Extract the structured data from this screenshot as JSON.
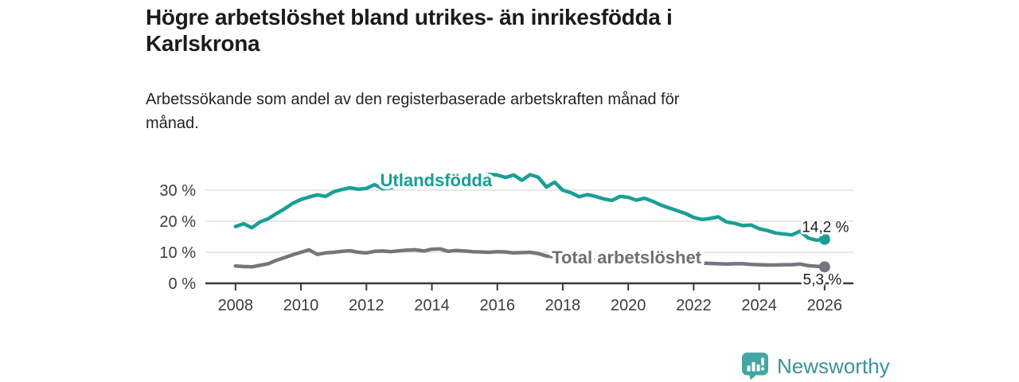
{
  "header": {
    "title_lines": [
      "Högre arbetslöshet bland utrikes- än inrikesfödda i",
      "Karlskrona"
    ],
    "subtitle_lines": [
      "Arbetssökande som andel av den registerbaserade arbetskraften månad för",
      "månad."
    ]
  },
  "footer": {
    "brand": "Newsworthy",
    "logo_icon": "chart-speech-bubble-icon",
    "brand_color": "#3b919b",
    "icon_color": "#43a6a2",
    "icon_glyph_color": "#ffffff"
  },
  "chart_data": {
    "type": "line",
    "title": "Högre arbetslöshet bland utrikes- än inrikesfödda i Karlskrona",
    "subtitle": "Arbetssökande som andel av den registerbaserade arbetskraften månad för månad.",
    "xlabel": "",
    "ylabel": "",
    "unit": "%",
    "grid": "horizontal",
    "xlim": [
      2007.08,
      2026.88
    ],
    "ylim": [
      0,
      40
    ],
    "x_ticks": {
      "values": [
        2008,
        2010,
        2012,
        2014,
        2016,
        2018,
        2020,
        2022,
        2024,
        2026
      ],
      "labels": [
        "2008",
        "2010",
        "2012",
        "2014",
        "2016",
        "2018",
        "2020",
        "2022",
        "2024",
        "2026"
      ]
    },
    "y_ticks": {
      "values": [
        0,
        10,
        20,
        30
      ],
      "labels": [
        "0 %",
        "10 %",
        "20 %",
        "30 %"
      ]
    },
    "colors": {
      "grid": "#d9d9d9",
      "axis": "#3a3a3a",
      "tick_text": "#3d3d3d",
      "value_text": "#1f1f1f"
    },
    "series": [
      {
        "name": "Utlandsfödda",
        "color": "#1a9e96",
        "line_width": 4.5,
        "end_dot": true,
        "end_label": {
          "text": "14,2 %",
          "dx": 1,
          "dy": -9
        },
        "label": {
          "text": "Utlandsfödda",
          "x_year": 2014.13,
          "y_pct": 33.3
        },
        "points": [
          [
            2008.0,
            18.3
          ],
          [
            2008.25,
            19.2
          ],
          [
            2008.5,
            17.9
          ],
          [
            2008.75,
            19.8
          ],
          [
            2009.0,
            20.8
          ],
          [
            2009.25,
            22.5
          ],
          [
            2009.5,
            24.0
          ],
          [
            2009.75,
            25.8
          ],
          [
            2010.0,
            27.0
          ],
          [
            2010.25,
            27.8
          ],
          [
            2010.5,
            28.5
          ],
          [
            2010.75,
            28.0
          ],
          [
            2011.0,
            29.5
          ],
          [
            2011.25,
            30.2
          ],
          [
            2011.5,
            30.8
          ],
          [
            2011.75,
            30.3
          ],
          [
            2012.0,
            30.6
          ],
          [
            2012.25,
            31.8
          ],
          [
            2012.5,
            30.5
          ],
          [
            2012.75,
            30.8
          ],
          [
            2013.0,
            31.3
          ],
          [
            2013.25,
            31.9
          ],
          [
            2013.5,
            32.4
          ],
          [
            2013.75,
            32.1
          ],
          [
            2014.0,
            32.7
          ],
          [
            2014.25,
            33.1
          ],
          [
            2014.5,
            32.3
          ],
          [
            2014.75,
            33.3
          ],
          [
            2015.0,
            33.7
          ],
          [
            2015.25,
            34.3
          ],
          [
            2015.5,
            34.1
          ],
          [
            2015.75,
            35.1
          ],
          [
            2016.0,
            34.9
          ],
          [
            2016.25,
            34.1
          ],
          [
            2016.5,
            34.9
          ],
          [
            2016.75,
            33.2
          ],
          [
            2017.0,
            35.0
          ],
          [
            2017.25,
            34.2
          ],
          [
            2017.5,
            31.0
          ],
          [
            2017.75,
            32.6
          ],
          [
            2018.0,
            30.0
          ],
          [
            2018.25,
            29.2
          ],
          [
            2018.5,
            27.9
          ],
          [
            2018.75,
            28.6
          ],
          [
            2019.0,
            28.0
          ],
          [
            2019.25,
            27.2
          ],
          [
            2019.5,
            26.7
          ],
          [
            2019.75,
            28.0
          ],
          [
            2020.0,
            27.7
          ],
          [
            2020.25,
            26.8
          ],
          [
            2020.5,
            27.4
          ],
          [
            2020.75,
            26.4
          ],
          [
            2021.0,
            25.2
          ],
          [
            2021.25,
            24.3
          ],
          [
            2021.5,
            23.4
          ],
          [
            2021.75,
            22.5
          ],
          [
            2022.0,
            21.2
          ],
          [
            2022.25,
            20.6
          ],
          [
            2022.5,
            20.9
          ],
          [
            2022.75,
            21.4
          ],
          [
            2023.0,
            19.8
          ],
          [
            2023.25,
            19.3
          ],
          [
            2023.5,
            18.6
          ],
          [
            2023.75,
            18.8
          ],
          [
            2024.0,
            17.6
          ],
          [
            2024.25,
            17.0
          ],
          [
            2024.5,
            16.2
          ],
          [
            2024.75,
            15.9
          ],
          [
            2025.0,
            15.6
          ],
          [
            2025.25,
            16.8
          ],
          [
            2025.5,
            14.6
          ],
          [
            2025.75,
            13.9
          ],
          [
            2026.0,
            14.2
          ]
        ]
      },
      {
        "name": "Total arbetslöshet",
        "color": "#75757e",
        "label_color": "#6e6e78",
        "line_width": 4.5,
        "end_dot": true,
        "end_label": {
          "text": "5,3 %",
          "dx": -3,
          "dy": 22
        },
        "label": {
          "text": "Total arbetslöshet",
          "x_year": 2019.95,
          "y_pct": 8.4
        },
        "points": [
          [
            2008.0,
            5.6
          ],
          [
            2008.25,
            5.4
          ],
          [
            2008.5,
            5.3
          ],
          [
            2008.75,
            5.8
          ],
          [
            2009.0,
            6.3
          ],
          [
            2009.25,
            7.4
          ],
          [
            2009.5,
            8.3
          ],
          [
            2009.75,
            9.2
          ],
          [
            2010.0,
            10.0
          ],
          [
            2010.25,
            10.8
          ],
          [
            2010.5,
            9.3
          ],
          [
            2010.75,
            9.8
          ],
          [
            2011.0,
            10.0
          ],
          [
            2011.25,
            10.3
          ],
          [
            2011.5,
            10.5
          ],
          [
            2011.75,
            10.0
          ],
          [
            2012.0,
            9.8
          ],
          [
            2012.25,
            10.3
          ],
          [
            2012.5,
            10.4
          ],
          [
            2012.75,
            10.2
          ],
          [
            2013.0,
            10.5
          ],
          [
            2013.25,
            10.7
          ],
          [
            2013.5,
            10.8
          ],
          [
            2013.75,
            10.4
          ],
          [
            2014.0,
            11.0
          ],
          [
            2014.25,
            11.1
          ],
          [
            2014.5,
            10.3
          ],
          [
            2014.75,
            10.6
          ],
          [
            2015.0,
            10.4
          ],
          [
            2015.25,
            10.2
          ],
          [
            2015.5,
            10.1
          ],
          [
            2015.75,
            10.0
          ],
          [
            2016.0,
            10.2
          ],
          [
            2016.25,
            10.1
          ],
          [
            2016.5,
            9.8
          ],
          [
            2016.75,
            9.9
          ],
          [
            2017.0,
            10.0
          ],
          [
            2017.25,
            9.6
          ],
          [
            2017.5,
            8.8
          ],
          [
            2017.75,
            8.5
          ],
          [
            2018.0,
            8.3
          ],
          [
            2018.25,
            8.2
          ],
          [
            2018.5,
            8.0
          ],
          [
            2018.75,
            7.8
          ],
          [
            2019.0,
            7.6
          ],
          [
            2019.25,
            7.5
          ],
          [
            2019.5,
            7.4
          ],
          [
            2019.75,
            7.3
          ],
          [
            2020.0,
            7.5
          ],
          [
            2020.25,
            8.0
          ],
          [
            2020.5,
            8.2
          ],
          [
            2020.75,
            8.0
          ],
          [
            2021.0,
            7.8
          ],
          [
            2021.25,
            7.5
          ],
          [
            2021.5,
            7.2
          ],
          [
            2021.75,
            6.9
          ],
          [
            2022.0,
            6.6
          ],
          [
            2022.25,
            6.5
          ],
          [
            2022.5,
            6.4
          ],
          [
            2022.75,
            6.3
          ],
          [
            2023.0,
            6.2
          ],
          [
            2023.25,
            6.3
          ],
          [
            2023.5,
            6.3
          ],
          [
            2023.75,
            6.1
          ],
          [
            2024.0,
            6.0
          ],
          [
            2024.25,
            5.9
          ],
          [
            2024.5,
            5.9
          ],
          [
            2024.75,
            6.0
          ],
          [
            2025.0,
            6.0
          ],
          [
            2025.25,
            6.2
          ],
          [
            2025.5,
            5.7
          ],
          [
            2025.75,
            5.5
          ],
          [
            2026.0,
            5.3
          ]
        ]
      }
    ]
  }
}
